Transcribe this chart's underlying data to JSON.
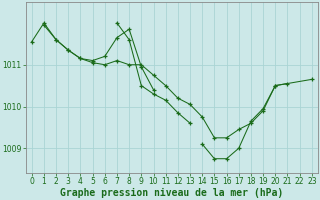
{
  "background_color": "#cce8e8",
  "grid_color": "#aad4d4",
  "line_color": "#1a6b1a",
  "marker_color": "#1a6b1a",
  "xlabel": "Graphe pression niveau de la mer (hPa)",
  "xlabel_fontsize": 7,
  "xlim": [
    -0.5,
    23.5
  ],
  "ylim": [
    1008.4,
    1012.5
  ],
  "yticks": [
    1009,
    1010,
    1011
  ],
  "xticks": [
    0,
    1,
    2,
    3,
    4,
    5,
    6,
    7,
    8,
    9,
    10,
    11,
    12,
    13,
    14,
    15,
    16,
    17,
    18,
    19,
    20,
    21,
    22,
    23
  ],
  "series": [
    {
      "x": [
        0,
        1,
        2,
        3,
        4,
        5,
        6,
        7,
        8,
        9,
        10,
        11,
        12,
        13,
        14,
        15,
        16,
        17,
        18,
        19,
        20,
        21
      ],
      "y": [
        1011.55,
        1012.0,
        1011.6,
        1011.35,
        1011.15,
        1011.05,
        1011.0,
        1011.1,
        1011.0,
        1011.0,
        1010.75,
        1010.5,
        1010.2,
        1010.05,
        1009.75,
        1009.25,
        1009.25,
        1009.45,
        1009.6,
        1009.9,
        1010.5,
        1010.55
      ]
    },
    {
      "x": [
        1,
        2,
        3,
        4,
        5,
        6,
        7,
        8,
        9,
        10
      ],
      "y": [
        1011.95,
        1011.6,
        1011.35,
        1011.15,
        1011.1,
        1011.2,
        1011.65,
        1011.85,
        1010.95,
        1010.4
      ]
    },
    {
      "x": [
        7,
        8,
        9,
        10,
        11,
        12,
        13
      ],
      "y": [
        1012.0,
        1011.6,
        1010.5,
        1010.3,
        1010.15,
        1009.85,
        1009.6
      ]
    },
    {
      "x": [
        14,
        15,
        16,
        17,
        18,
        19,
        20,
        23
      ],
      "y": [
        1009.1,
        1008.75,
        1008.75,
        1009.0,
        1009.65,
        1009.95,
        1010.5,
        1010.65
      ]
    }
  ],
  "tick_fontsize": 5.5,
  "axis_color": "#888888"
}
